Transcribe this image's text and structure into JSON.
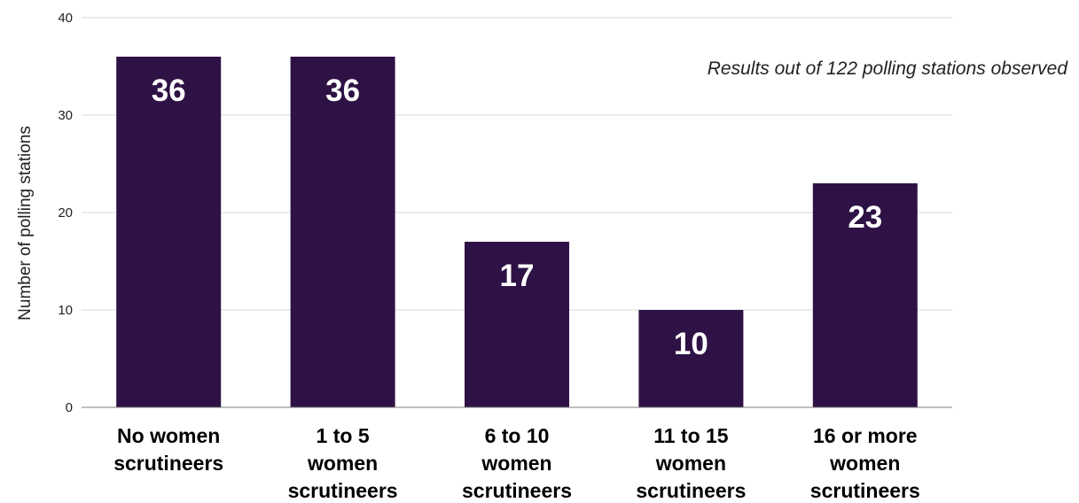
{
  "chart_data": {
    "type": "bar",
    "title": "",
    "xlabel": "",
    "ylabel": "Number of polling stations",
    "note": "Results out of 122 polling stations observed",
    "categories": [
      [
        "No women",
        "scrutineers"
      ],
      [
        "1 to 5",
        "women",
        "scrutineers"
      ],
      [
        "6 to 10",
        "women",
        "scrutineers"
      ],
      [
        "11 to 15",
        "women",
        "scrutineers"
      ],
      [
        "16 or more",
        "women",
        "scrutineers"
      ]
    ],
    "values": [
      36,
      36,
      17,
      10,
      23
    ],
    "ylim": [
      0,
      40
    ],
    "yticks": [
      0,
      10,
      20,
      30,
      40
    ],
    "grid": true,
    "data_labels": true,
    "colors": {
      "bar": "#2e1245",
      "grid": "#d9d9d9",
      "axis": "#7f7f7f"
    }
  }
}
